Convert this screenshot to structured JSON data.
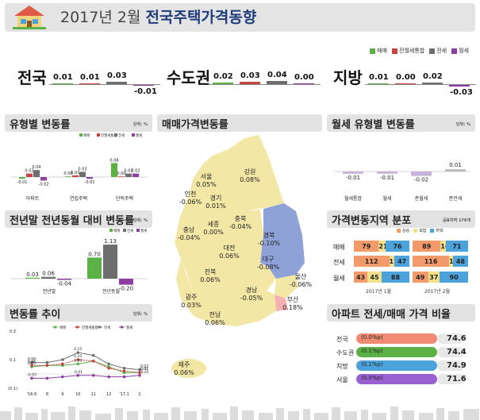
{
  "header": {
    "title_prefix": "2017년 2월",
    "title_main": "전국주택가격동향"
  },
  "colors": {
    "sale": "#5bb046",
    "mixed": "#c9443f",
    "jeonse": "#6e6e6e",
    "wolse": "#8c3fa0",
    "rise": "#f29a6a",
    "hold": "#f2e08a",
    "fall": "#4ca3dc"
  },
  "legend_top": [
    "매매",
    "전월세통합",
    "전세",
    "월세"
  ],
  "summary": [
    {
      "region": "전국",
      "values": [
        "0.01",
        "0.01",
        "0.03",
        "-0.01"
      ]
    },
    {
      "region": "수도권",
      "values": [
        "0.02",
        "0.03",
        "0.04",
        "0.00"
      ]
    },
    {
      "region": "지방",
      "values": [
        "0.01",
        "0.00",
        "0.02",
        "-0.03"
      ]
    }
  ],
  "panels": {
    "type_change": {
      "title": "유형별 변동률",
      "unit": "단위: %"
    },
    "yearly": {
      "title": "전년말 전년동월 대비 변동률",
      "unit": "단위: %"
    },
    "trend": {
      "title": "변동률 추이",
      "unit": "단위: %"
    },
    "map": {
      "title": "매매가격변동률"
    },
    "wolse_type": {
      "title": "월세 유형별 변동률",
      "unit": "단위: %"
    },
    "distribution": {
      "title": "가격변동지역 분포",
      "unit": "공표지역 176개"
    },
    "ratio": {
      "title": "아파트 전세/매매 가격 비율"
    }
  },
  "chart_data": [
    {
      "type": "bar",
      "title": "유형별 변동률",
      "categories": [
        "아파트",
        "연립주택",
        "단독주택"
      ],
      "series": [
        {
          "name": "매매",
          "values": [
            -0.01,
            0.0,
            0.08
          ]
        },
        {
          "name": "전월세통합",
          "values": [
            0.02,
            0.01,
            0.0
          ]
        },
        {
          "name": "전세",
          "values": [
            0.04,
            0.03,
            0.02
          ]
        },
        {
          "name": "월세",
          "values": [
            -0.02,
            -0.01,
            0.02
          ]
        }
      ],
      "labels": [
        [
          "-0.01",
          "0.02",
          "0.04",
          "-0.02"
        ],
        [
          "0.00",
          "0.01",
          "0.03",
          "-0.01"
        ],
        [
          "0.08",
          "0.00",
          "0.02",
          "0.02"
        ]
      ]
    },
    {
      "type": "bar",
      "title": "전년말 전년동월 대비 변동률",
      "categories": [
        "전년말",
        "전년동월"
      ],
      "series": [
        {
          "name": "매매",
          "values": [
            0.03,
            0.7
          ]
        },
        {
          "name": "전세",
          "values": [
            0.06,
            1.13
          ]
        },
        {
          "name": "월세",
          "values": [
            -0.04,
            -0.2
          ]
        }
      ],
      "labels": [
        [
          "0.03",
          "0.06",
          "-0.04"
        ],
        [
          "0.70",
          "1.13",
          "-0.20"
        ]
      ]
    },
    {
      "type": "line",
      "title": "변동률 추이",
      "x": [
        "'16.6",
        "8",
        "9",
        "10",
        "11",
        "12",
        "'17.1",
        "2"
      ],
      "ylabels": [
        "0.3",
        "0.1",
        "(0.1)"
      ],
      "ylim": [
        -0.1,
        0.3
      ],
      "series": [
        {
          "name": "매매",
          "values": [
            0.05,
            0.06,
            0.06,
            0.07,
            0.09,
            0.05,
            0.01,
            0.01
          ]
        },
        {
          "name": "전월세통합",
          "values": [
            0.06,
            0.06,
            0.07,
            0.1,
            0.09,
            0.04,
            0.02,
            0.01
          ]
        },
        {
          "name": "전세",
          "values": [
            0.08,
            0.08,
            0.1,
            0.15,
            0.13,
            0.07,
            0.04,
            0.03
          ]
        },
        {
          "name": "월세",
          "values": [
            -0.03,
            -0.03,
            -0.02,
            -0.01,
            -0.01,
            -0.02,
            -0.02,
            -0.01
          ]
        }
      ],
      "point_labels": [
        {
          "s": 2,
          "i": 0,
          "t": "0.08"
        },
        {
          "s": 2,
          "i": 3,
          "t": "0.15"
        },
        {
          "s": 1,
          "i": 3,
          "t": "0.10"
        },
        {
          "s": 0,
          "i": 3,
          "t": "0.09"
        },
        {
          "s": 0,
          "i": 0,
          "t": "0.05"
        },
        {
          "s": 1,
          "i": 0,
          "t": "0.06"
        },
        {
          "s": 3,
          "i": 0,
          "t": "-0.03"
        },
        {
          "s": 2,
          "i": 7,
          "t": "0.03"
        },
        {
          "s": 1,
          "i": 7,
          "t": "0.01"
        },
        {
          "s": 0,
          "i": 7,
          "t": "0.01"
        },
        {
          "s": 3,
          "i": 7,
          "t": "-0.01"
        },
        {
          "s": 3,
          "i": 3,
          "t": "-0.01"
        }
      ]
    },
    {
      "type": "bar",
      "title": "월세 유형별 변동률",
      "categories": [
        "월세통합",
        "월세",
        "준월세",
        "준전세"
      ],
      "values": [
        -0.01,
        -0.01,
        -0.02,
        0.01
      ],
      "labels": [
        "-0.01",
        "-0.01",
        "-0.02",
        "0.01"
      ]
    },
    {
      "type": "bar",
      "title": "가격변동지역 분포",
      "legend": [
        "상승",
        "보합",
        "하락"
      ],
      "columns": [
        "2017년 1월",
        "2017년 2월"
      ],
      "rows": [
        {
          "name": "매매",
          "jan": [
            79,
            21,
            76
          ],
          "feb": [
            89,
            16,
            71
          ]
        },
        {
          "name": "전세",
          "jan": [
            112,
            17,
            47
          ],
          "feb": [
            116,
            12,
            48
          ]
        },
        {
          "name": "월세",
          "jan": [
            43,
            45,
            88
          ],
          "feb": [
            49,
            37,
            90
          ]
        }
      ]
    },
    {
      "type": "bar",
      "title": "아파트 전세/매매 가격 비율",
      "rows": [
        {
          "name": "전국",
          "change": "(0.0%p)",
          "value": "74.6",
          "color": "#f08a72"
        },
        {
          "name": "수도권",
          "change": "(0.1%p)",
          "value": "74.4",
          "color": "#5bb046"
        },
        {
          "name": "지방",
          "change": "(0.1%p)",
          "value": "74.9",
          "color": "#4ca3dc"
        },
        {
          "name": "서울",
          "change": "(0.0%p)",
          "value": "71.6",
          "color": "#9a5fd0"
        }
      ]
    }
  ],
  "map": {
    "regions": [
      {
        "name": "서울",
        "value": "0.05%"
      },
      {
        "name": "인천",
        "value": "-0.06%"
      },
      {
        "name": "경기",
        "value": "0.01%"
      },
      {
        "name": "강원",
        "value": "0.08%"
      },
      {
        "name": "세종",
        "value": "0.00%"
      },
      {
        "name": "충북",
        "value": "-0.04%"
      },
      {
        "name": "충남",
        "value": "-0.04%"
      },
      {
        "name": "대전",
        "value": "0.06%"
      },
      {
        "name": "경북",
        "value": "-0.10%"
      },
      {
        "name": "대구",
        "value": "-0.08%"
      },
      {
        "name": "전북",
        "value": "0.06%"
      },
      {
        "name": "광주",
        "value": "0.03%"
      },
      {
        "name": "경남",
        "value": "-0.05%"
      },
      {
        "name": "울산",
        "value": "-0.06%"
      },
      {
        "name": "전남",
        "value": "0.06%"
      },
      {
        "name": "부산",
        "value": "0.18%"
      },
      {
        "name": "제주",
        "value": "0.06%"
      }
    ]
  }
}
